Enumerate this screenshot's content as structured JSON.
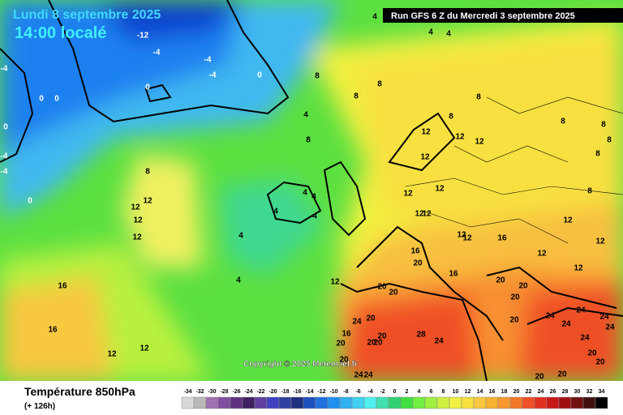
{
  "header": {
    "date": "Lundi 8 septembre 2025",
    "local_time": "14:00 localé",
    "run": "Run GFS 6 Z du Mercredi 3 septembre 2025"
  },
  "map": {
    "copyright": "Copyright © 2025 Meteociel.fr",
    "contour_labels": [
      -12,
      -4,
      -4,
      -4,
      0,
      0,
      0,
      0,
      0,
      -4,
      -4,
      -4,
      0,
      4,
      4,
      4,
      8,
      8,
      8,
      8,
      8,
      4,
      8,
      8,
      12,
      12,
      12,
      12,
      4,
      4,
      4,
      4,
      4,
      4,
      12,
      12,
      12,
      12,
      12,
      12,
      12,
      12,
      12,
      16,
      12,
      12,
      12,
      12,
      16,
      20,
      16,
      12,
      20,
      20,
      20,
      20,
      20,
      20,
      20,
      24,
      16,
      20,
      20,
      20,
      20,
      28,
      24,
      20,
      24,
      24,
      16,
      16,
      12,
      12,
      24,
      24,
      24,
      24,
      24,
      20,
      20,
      24,
      20,
      20,
      8,
      8,
      8,
      8,
      8,
      12
    ]
  },
  "footer": {
    "title": "Température 850hPa",
    "lead_time": "(+ 126h)",
    "scale": [
      -34,
      -32,
      -30,
      -28,
      -26,
      -24,
      -22,
      -20,
      -18,
      -16,
      -14,
      -12,
      -10,
      -8,
      -6,
      -4,
      -2,
      0,
      2,
      4,
      6,
      8,
      10,
      12,
      14,
      16,
      18,
      20,
      22,
      24,
      26,
      28,
      30,
      32,
      34
    ]
  }
}
